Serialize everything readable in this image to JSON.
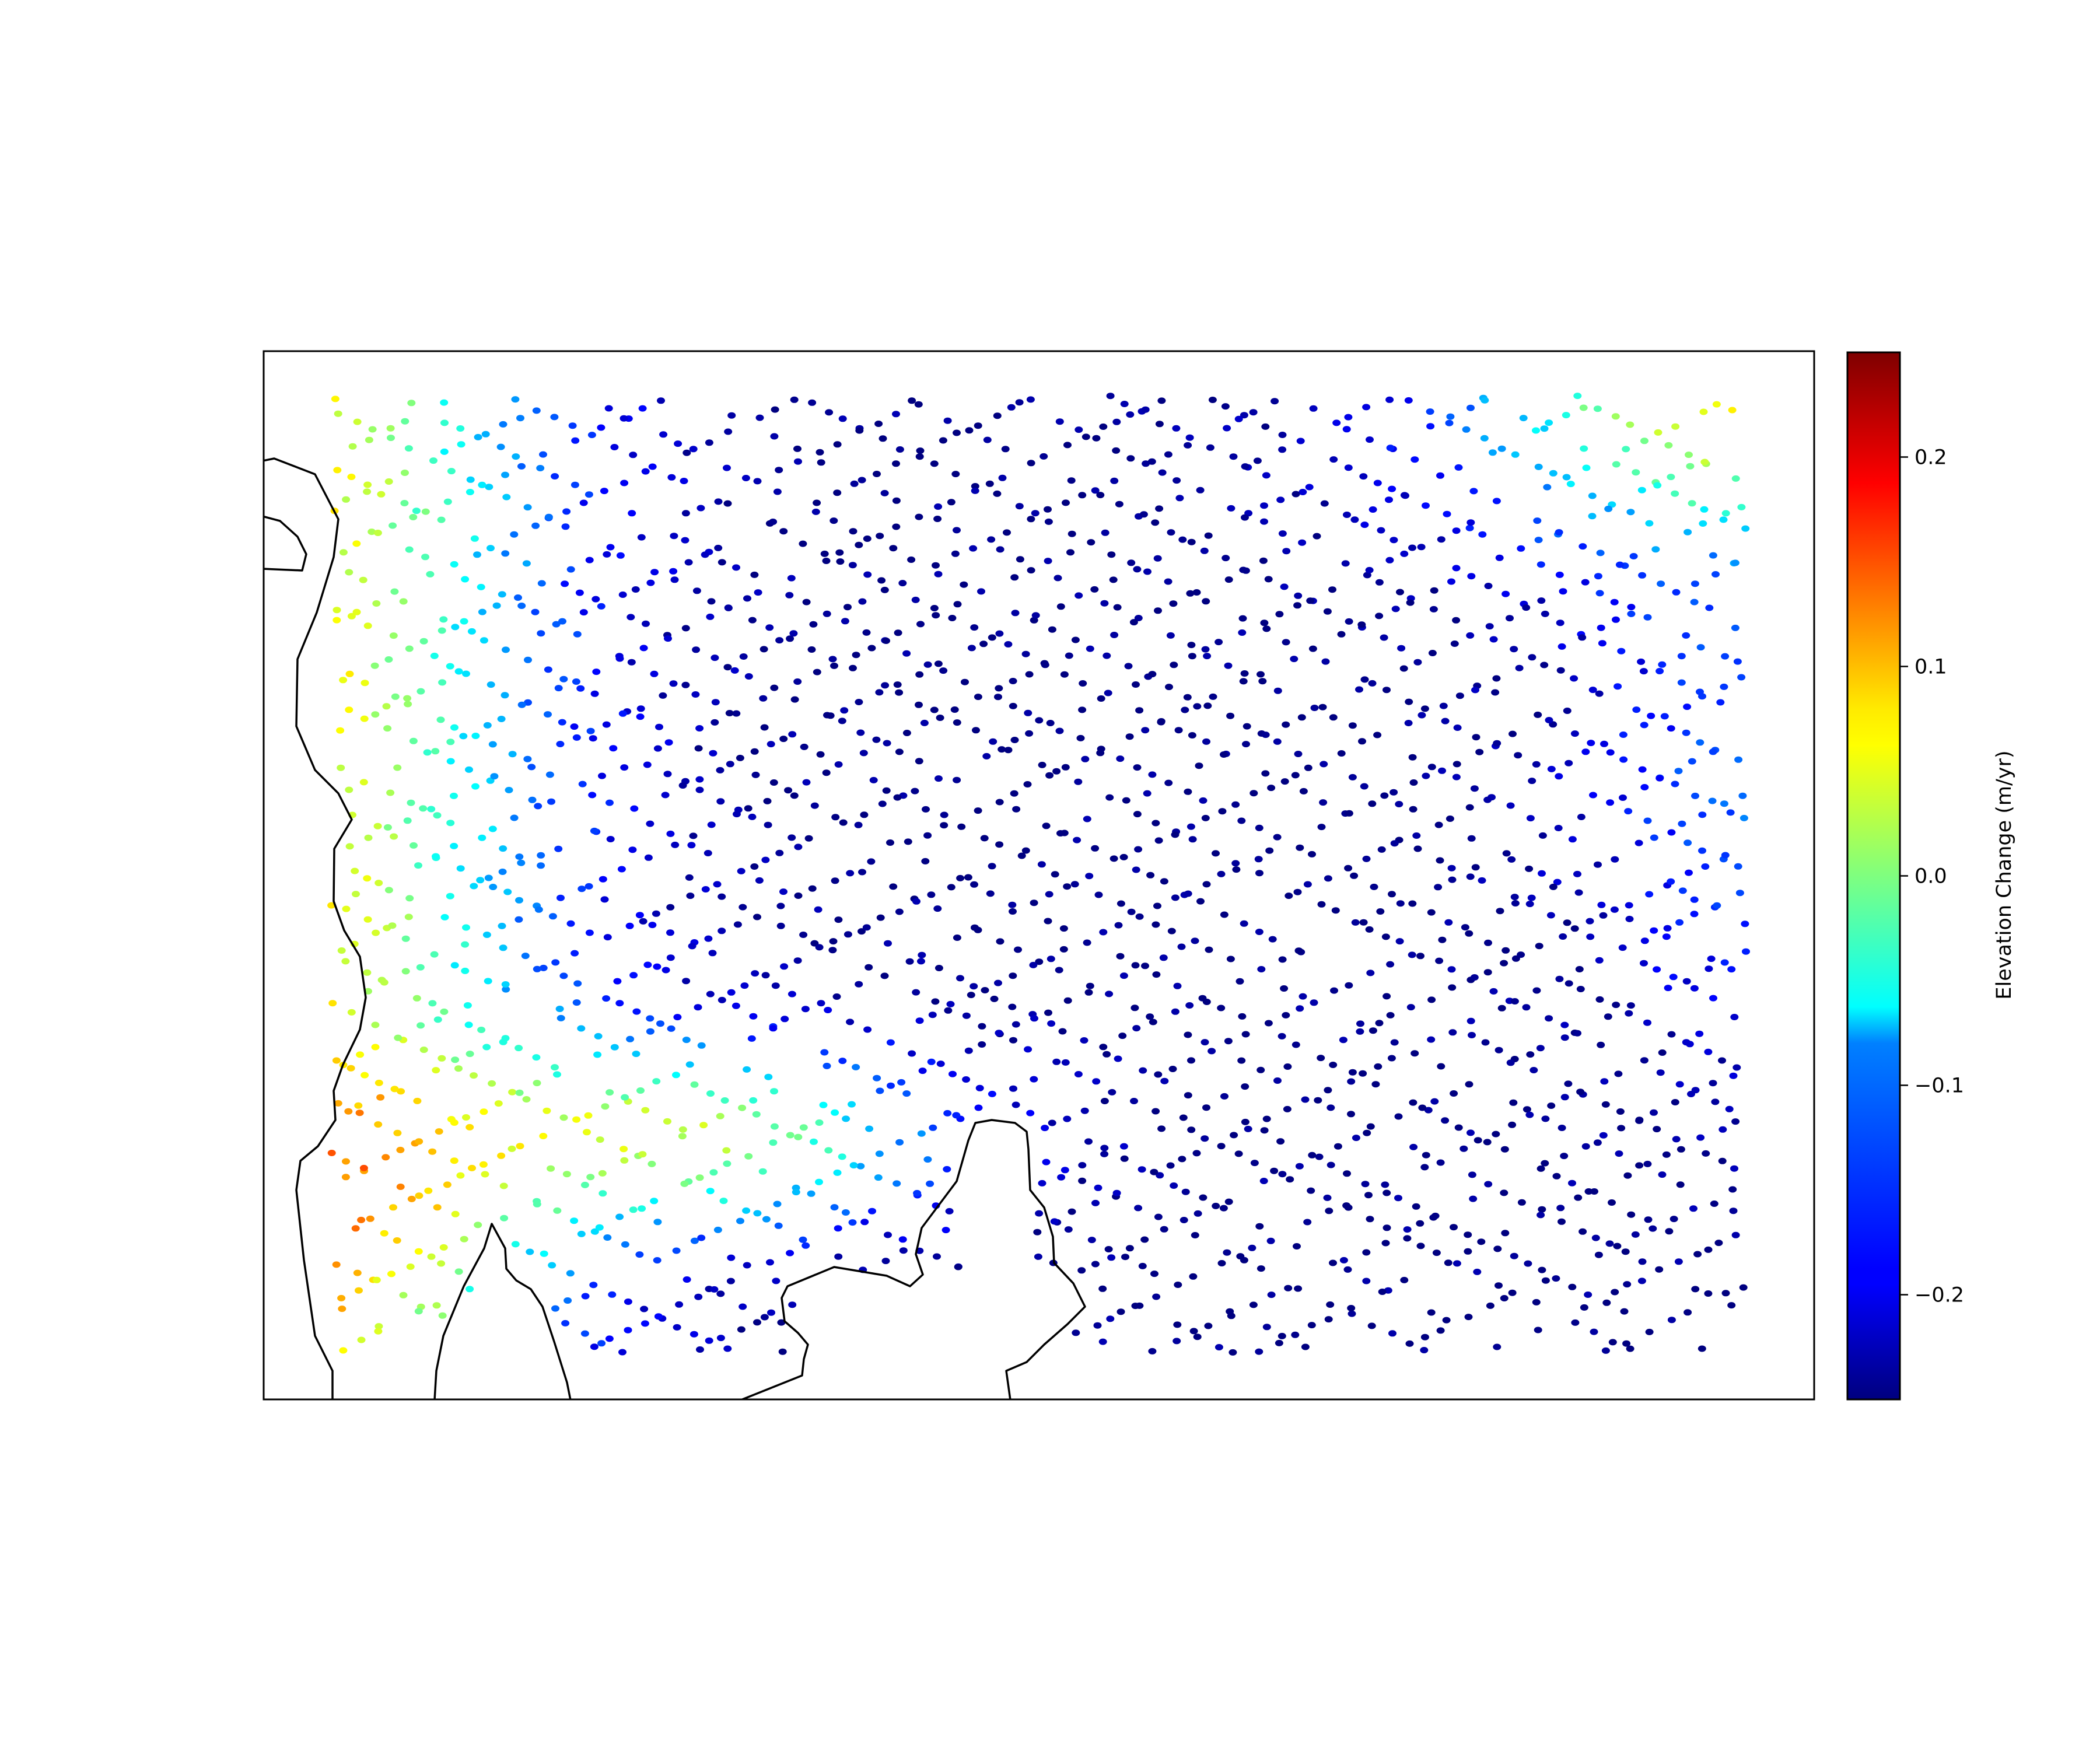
{
  "chart_data": {
    "type": "scatter",
    "title": "",
    "xlabel": "",
    "ylabel": "",
    "colormap": "jet",
    "axes_ticks_visible": false,
    "colorbar": {
      "label": "Elevation Change (m/yr)",
      "vmin": -0.25,
      "vmax": 0.25,
      "ticks": [
        0.2,
        0.1,
        0.0,
        -0.1,
        -0.2
      ],
      "tick_labels": [
        "0.2",
        "0.1",
        "0.0",
        "−0.1",
        "−0.2"
      ],
      "placement": "right"
    },
    "spatial_pattern": "Satellite altimetry ground tracks in a criss-cross lattice; values near 0 to +0.2 m/yr along the western coast (left), strongly negative (about -0.25 m/yr) across the center and south-east, mildly negative to near-zero in the north-east.",
    "coastline": "black outline on left edge and two peninsulas along the bottom"
  }
}
